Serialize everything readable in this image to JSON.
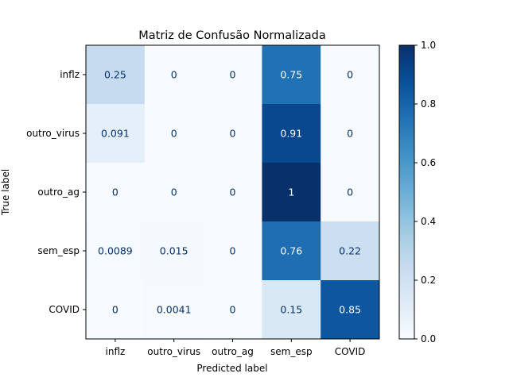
{
  "chart_data": {
    "type": "heatmap",
    "title": "Matriz de Confusão Normalizada",
    "xlabel": "Predicted label",
    "ylabel": "True label",
    "x_categories": [
      "inflz",
      "outro_virus",
      "outro_ag",
      "sem_esp",
      "COVID"
    ],
    "y_categories": [
      "inflz",
      "outro_virus",
      "outro_ag",
      "sem_esp",
      "COVID"
    ],
    "values": [
      [
        0.25,
        0,
        0,
        0.75,
        0
      ],
      [
        0.091,
        0,
        0,
        0.91,
        0
      ],
      [
        0,
        0,
        0,
        1,
        0
      ],
      [
        0.0089,
        0.015,
        0,
        0.76,
        0.22
      ],
      [
        0,
        0.0041,
        0,
        0.15,
        0.85
      ]
    ],
    "labels": [
      [
        "0.25",
        "0",
        "0",
        "0.75",
        "0"
      ],
      [
        "0.091",
        "0",
        "0",
        "0.91",
        "0"
      ],
      [
        "0",
        "0",
        "0",
        "1",
        "0"
      ],
      [
        "0.0089",
        "0.015",
        "0",
        "0.76",
        "0.22"
      ],
      [
        "0",
        "0.0041",
        "0",
        "0.15",
        "0.85"
      ]
    ],
    "colormap": "Blues",
    "colorbar": {
      "range": [
        0.0,
        1.0
      ],
      "ticks": [
        0.0,
        0.2,
        0.4,
        0.6,
        0.8,
        1.0
      ],
      "tick_labels": [
        "0.0",
        "0.2",
        "0.4",
        "0.6",
        "0.8",
        "1.0"
      ]
    }
  }
}
